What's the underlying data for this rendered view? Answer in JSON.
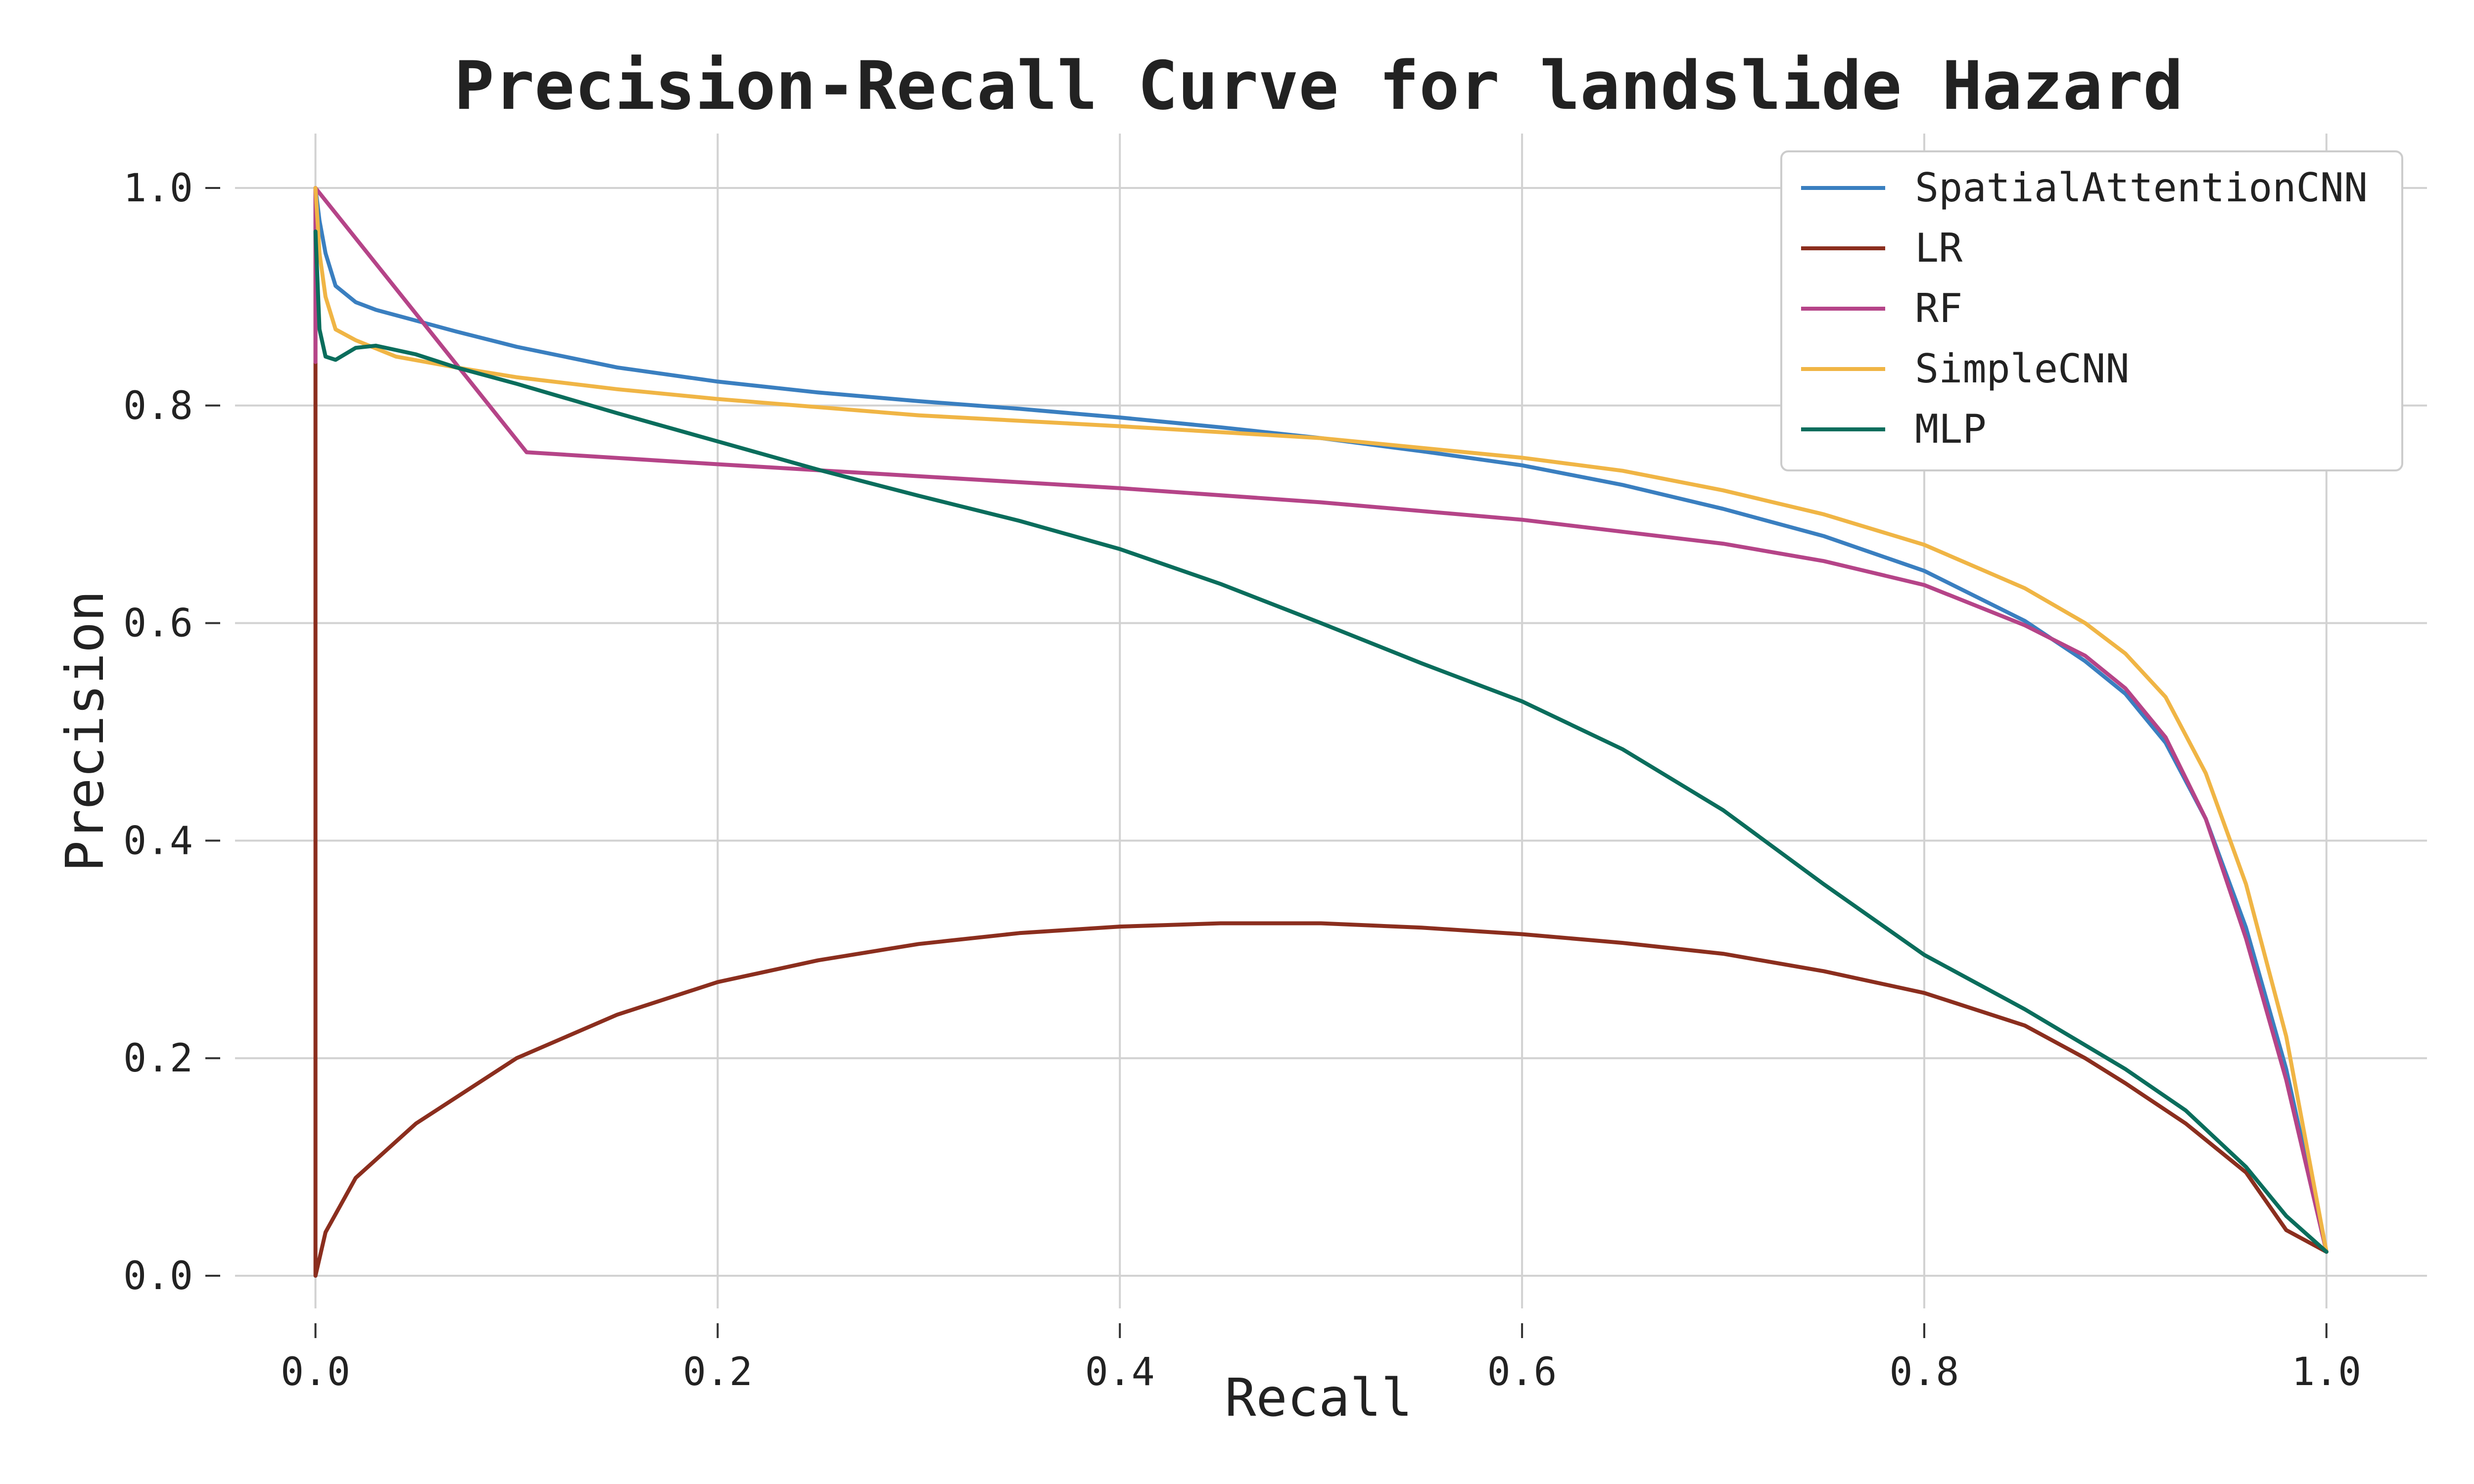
{
  "chart_data": {
    "type": "line",
    "title": "Precision-Recall Curve for landslide Hazard",
    "xlabel": "Recall",
    "ylabel": "Precision",
    "xlim": [
      -0.04,
      1.05
    ],
    "ylim": [
      -0.03,
      1.05
    ],
    "xticks": [
      0.0,
      0.2,
      0.4,
      0.6,
      0.8,
      1.0
    ],
    "yticks": [
      0.0,
      0.2,
      0.4,
      0.6,
      0.8,
      1.0
    ],
    "xtick_labels": [
      "0.0",
      "0.2",
      "0.4",
      "0.6",
      "0.8",
      "1.0"
    ],
    "ytick_labels": [
      "0.0",
      "0.2",
      "0.4",
      "0.6",
      "0.8",
      "1.0"
    ],
    "grid": true,
    "legend_position": "top-right",
    "series": [
      {
        "name": "SpatialAttentionCNN",
        "color": "#3a7fc0",
        "points": [
          [
            0,
            1.0
          ],
          [
            0.002,
            0.97
          ],
          [
            0.005,
            0.94
          ],
          [
            0.01,
            0.91
          ],
          [
            0.02,
            0.895
          ],
          [
            0.03,
            0.888
          ],
          [
            0.05,
            0.878
          ],
          [
            0.07,
            0.868
          ],
          [
            0.1,
            0.854
          ],
          [
            0.15,
            0.835
          ],
          [
            0.2,
            0.822
          ],
          [
            0.25,
            0.812
          ],
          [
            0.3,
            0.804
          ],
          [
            0.35,
            0.797
          ],
          [
            0.4,
            0.789
          ],
          [
            0.45,
            0.78
          ],
          [
            0.5,
            0.77
          ],
          [
            0.55,
            0.758
          ],
          [
            0.6,
            0.745
          ],
          [
            0.65,
            0.727
          ],
          [
            0.7,
            0.705
          ],
          [
            0.75,
            0.68
          ],
          [
            0.8,
            0.648
          ],
          [
            0.85,
            0.602
          ],
          [
            0.88,
            0.565
          ],
          [
            0.9,
            0.535
          ],
          [
            0.92,
            0.49
          ],
          [
            0.94,
            0.42
          ],
          [
            0.96,
            0.32
          ],
          [
            0.98,
            0.19
          ],
          [
            1.0,
            0.022
          ]
        ]
      },
      {
        "name": "LR",
        "color": "#8b2e1e",
        "points": [
          [
            0,
            0.0
          ],
          [
            0,
            1.0
          ],
          [
            0,
            0.0
          ],
          [
            0.005,
            0.04
          ],
          [
            0.02,
            0.09
          ],
          [
            0.05,
            0.14
          ],
          [
            0.1,
            0.2
          ],
          [
            0.15,
            0.24
          ],
          [
            0.2,
            0.27
          ],
          [
            0.25,
            0.29
          ],
          [
            0.3,
            0.305
          ],
          [
            0.35,
            0.315
          ],
          [
            0.4,
            0.321
          ],
          [
            0.45,
            0.324
          ],
          [
            0.5,
            0.324
          ],
          [
            0.55,
            0.32
          ],
          [
            0.6,
            0.314
          ],
          [
            0.65,
            0.306
          ],
          [
            0.7,
            0.296
          ],
          [
            0.75,
            0.28
          ],
          [
            0.8,
            0.26
          ],
          [
            0.85,
            0.23
          ],
          [
            0.88,
            0.2
          ],
          [
            0.9,
            0.177
          ],
          [
            0.93,
            0.14
          ],
          [
            0.96,
            0.095
          ],
          [
            0.98,
            0.042
          ],
          [
            1.0,
            0.022
          ]
        ]
      },
      {
        "name": "RF",
        "color": "#b54488",
        "points": [
          [
            0,
            0.84
          ],
          [
            0,
            1.0
          ],
          [
            0.105,
            0.757
          ],
          [
            0.2,
            0.746
          ],
          [
            0.3,
            0.735
          ],
          [
            0.4,
            0.724
          ],
          [
            0.5,
            0.711
          ],
          [
            0.6,
            0.695
          ],
          [
            0.7,
            0.673
          ],
          [
            0.75,
            0.657
          ],
          [
            0.8,
            0.635
          ],
          [
            0.85,
            0.598
          ],
          [
            0.88,
            0.57
          ],
          [
            0.9,
            0.54
          ],
          [
            0.92,
            0.495
          ],
          [
            0.94,
            0.42
          ],
          [
            0.96,
            0.31
          ],
          [
            0.98,
            0.18
          ],
          [
            1.0,
            0.022
          ]
        ]
      },
      {
        "name": "SimpleCNN",
        "color": "#f0b545",
        "points": [
          [
            0,
            1.0
          ],
          [
            0.002,
            0.94
          ],
          [
            0.005,
            0.9
          ],
          [
            0.01,
            0.87
          ],
          [
            0.02,
            0.86
          ],
          [
            0.04,
            0.845
          ],
          [
            0.07,
            0.835
          ],
          [
            0.1,
            0.826
          ],
          [
            0.15,
            0.815
          ],
          [
            0.2,
            0.806
          ],
          [
            0.3,
            0.791
          ],
          [
            0.4,
            0.781
          ],
          [
            0.5,
            0.77
          ],
          [
            0.6,
            0.752
          ],
          [
            0.65,
            0.74
          ],
          [
            0.7,
            0.722
          ],
          [
            0.75,
            0.7
          ],
          [
            0.8,
            0.672
          ],
          [
            0.85,
            0.632
          ],
          [
            0.88,
            0.6
          ],
          [
            0.9,
            0.572
          ],
          [
            0.92,
            0.532
          ],
          [
            0.94,
            0.462
          ],
          [
            0.96,
            0.36
          ],
          [
            0.98,
            0.22
          ],
          [
            1.0,
            0.022
          ]
        ]
      },
      {
        "name": "MLP",
        "color": "#0a6d5c",
        "points": [
          [
            0,
            0.96
          ],
          [
            0.002,
            0.87
          ],
          [
            0.005,
            0.845
          ],
          [
            0.01,
            0.842
          ],
          [
            0.02,
            0.853
          ],
          [
            0.03,
            0.855
          ],
          [
            0.05,
            0.847
          ],
          [
            0.07,
            0.835
          ],
          [
            0.1,
            0.82
          ],
          [
            0.15,
            0.793
          ],
          [
            0.2,
            0.767
          ],
          [
            0.25,
            0.741
          ],
          [
            0.3,
            0.717
          ],
          [
            0.35,
            0.694
          ],
          [
            0.4,
            0.668
          ],
          [
            0.45,
            0.636
          ],
          [
            0.5,
            0.6
          ],
          [
            0.55,
            0.563
          ],
          [
            0.6,
            0.528
          ],
          [
            0.65,
            0.484
          ],
          [
            0.7,
            0.428
          ],
          [
            0.75,
            0.36
          ],
          [
            0.8,
            0.295
          ],
          [
            0.85,
            0.245
          ],
          [
            0.9,
            0.19
          ],
          [
            0.93,
            0.152
          ],
          [
            0.96,
            0.1
          ],
          [
            0.98,
            0.055
          ],
          [
            1.0,
            0.022
          ]
        ]
      }
    ]
  }
}
